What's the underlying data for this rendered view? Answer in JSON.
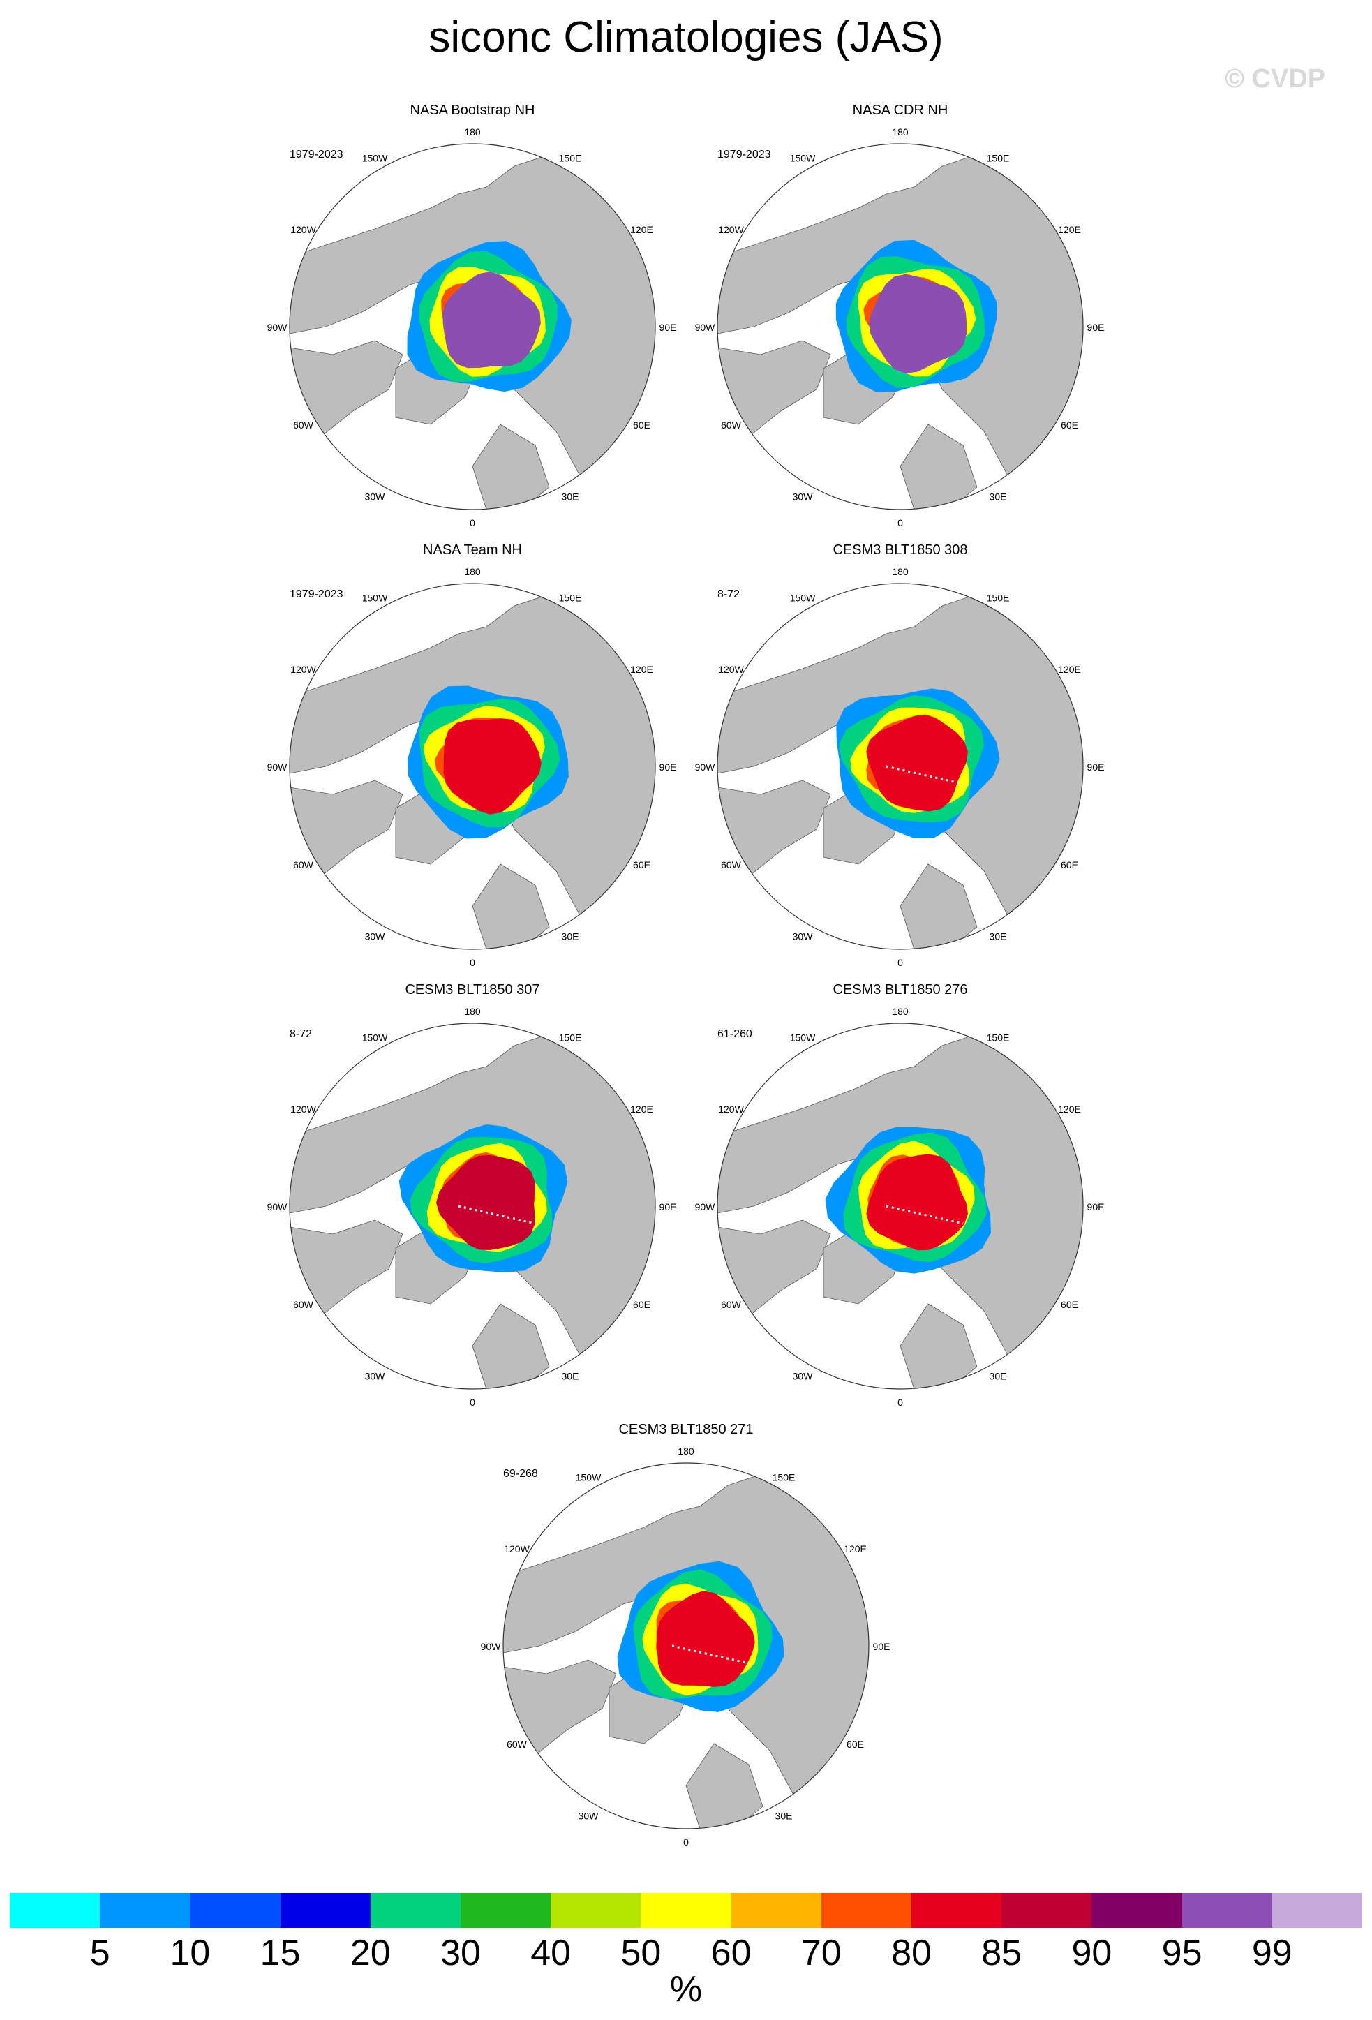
{
  "title": "siconc Climatologies (JAS)",
  "watermark": "© CVDP",
  "units": "%",
  "longitude_labels": [
    "180",
    "150E",
    "120E",
    "90E",
    "60E",
    "30E",
    "0",
    "30W",
    "60W",
    "90W",
    "120W",
    "150W"
  ],
  "panels": [
    {
      "title": "NASA Bootstrap NH",
      "period": "1979-2023",
      "core_color": "#8a4fb0",
      "model": false
    },
    {
      "title": "NASA CDR NH",
      "period": "1979-2023",
      "core_color": "#8a4fb0",
      "model": false
    },
    {
      "title": "NASA Team NH",
      "period": "1979-2023",
      "core_color": "#e8001f",
      "model": false
    },
    {
      "title": "CESM3 BLT1850 308",
      "period": "8-72",
      "core_color": "#e8001f",
      "model": true
    },
    {
      "title": "CESM3 BLT1850 307",
      "period": "8-72",
      "core_color": "#c8002e",
      "model": true
    },
    {
      "title": "CESM3 BLT1850 276",
      "period": "61-260",
      "core_color": "#e8001f",
      "model": true
    },
    {
      "title": "CESM3 BLT1850 271",
      "period": "69-268",
      "core_color": "#e8001f",
      "model": true
    }
  ],
  "colorbar": {
    "colors": [
      "#00ffff",
      "#0096ff",
      "#0050ff",
      "#0000e6",
      "#00d27d",
      "#1eb91e",
      "#b4e600",
      "#ffff00",
      "#ffb400",
      "#ff5000",
      "#e6001e",
      "#be0032",
      "#820064",
      "#8c50b4",
      "#c8aadc"
    ],
    "labels": [
      "5",
      "10",
      "15",
      "20",
      "30",
      "40",
      "50",
      "60",
      "70",
      "80",
      "85",
      "90",
      "95",
      "99"
    ]
  }
}
